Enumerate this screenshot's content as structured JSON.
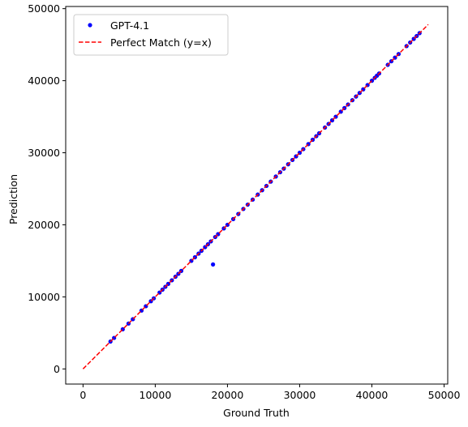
{
  "chart_data": {
    "type": "scatter",
    "xlabel": "Ground Truth",
    "ylabel": "Prediction",
    "xlim": [
      -2400,
      50500
    ],
    "ylim": [
      -2100,
      50300
    ],
    "xticks": [
      0,
      10000,
      20000,
      30000,
      40000,
      50000
    ],
    "yticks": [
      0,
      10000,
      20000,
      30000,
      40000,
      50000
    ],
    "xtick_labels": [
      "0",
      "10000",
      "20000",
      "30000",
      "40000",
      "50000"
    ],
    "ytick_labels": [
      "0",
      "10000",
      "20000",
      "30000",
      "40000",
      "50000"
    ],
    "grid": false,
    "legend_position": "top-left",
    "series": [
      {
        "name": "GPT-4.1",
        "kind": "scatter",
        "color": "#0000ff",
        "points": [
          [
            3800,
            3800
          ],
          [
            4300,
            4300
          ],
          [
            5500,
            5500
          ],
          [
            6300,
            6300
          ],
          [
            6900,
            6900
          ],
          [
            8100,
            8100
          ],
          [
            8700,
            8700
          ],
          [
            9400,
            9400
          ],
          [
            9800,
            9800
          ],
          [
            10600,
            10600
          ],
          [
            11000,
            11000
          ],
          [
            11400,
            11400
          ],
          [
            11800,
            11800
          ],
          [
            12300,
            12300
          ],
          [
            12800,
            12800
          ],
          [
            13200,
            13200
          ],
          [
            13600,
            13600
          ],
          [
            15000,
            15000
          ],
          [
            15500,
            15500
          ],
          [
            16000,
            16000
          ],
          [
            16400,
            16400
          ],
          [
            16900,
            16900
          ],
          [
            17300,
            17300
          ],
          [
            17700,
            17700
          ],
          [
            18000,
            14500
          ],
          [
            18300,
            18300
          ],
          [
            18700,
            18700
          ],
          [
            19500,
            19500
          ],
          [
            20000,
            20000
          ],
          [
            20800,
            20800
          ],
          [
            21500,
            21500
          ],
          [
            22200,
            22200
          ],
          [
            22800,
            22800
          ],
          [
            23500,
            23500
          ],
          [
            24200,
            24200
          ],
          [
            24800,
            24800
          ],
          [
            25400,
            25400
          ],
          [
            26000,
            26000
          ],
          [
            26700,
            26700
          ],
          [
            27300,
            27300
          ],
          [
            27800,
            27800
          ],
          [
            28400,
            28400
          ],
          [
            29000,
            29000
          ],
          [
            29500,
            29500
          ],
          [
            30000,
            30000
          ],
          [
            30500,
            30500
          ],
          [
            31200,
            31200
          ],
          [
            31800,
            31800
          ],
          [
            32300,
            32300
          ],
          [
            32700,
            32700
          ],
          [
            33500,
            33500
          ],
          [
            34000,
            34000
          ],
          [
            34500,
            34500
          ],
          [
            35000,
            35000
          ],
          [
            35700,
            35700
          ],
          [
            36200,
            36200
          ],
          [
            36700,
            36700
          ],
          [
            37300,
            37300
          ],
          [
            37800,
            37800
          ],
          [
            38300,
            38300
          ],
          [
            38800,
            38800
          ],
          [
            39400,
            39400
          ],
          [
            40000,
            40000
          ],
          [
            40400,
            40400
          ],
          [
            40700,
            40700
          ],
          [
            41000,
            41000
          ],
          [
            42200,
            42200
          ],
          [
            42700,
            42700
          ],
          [
            43200,
            43200
          ],
          [
            43700,
            43700
          ],
          [
            44800,
            44800
          ],
          [
            45300,
            45300
          ],
          [
            45800,
            45800
          ],
          [
            46200,
            46200
          ],
          [
            46600,
            46600
          ]
        ]
      },
      {
        "name": "Perfect Match (y=x)",
        "kind": "line",
        "style": "dashed",
        "color": "#ff0000",
        "x": [
          0,
          47800
        ],
        "y": [
          0,
          47800
        ]
      }
    ]
  }
}
